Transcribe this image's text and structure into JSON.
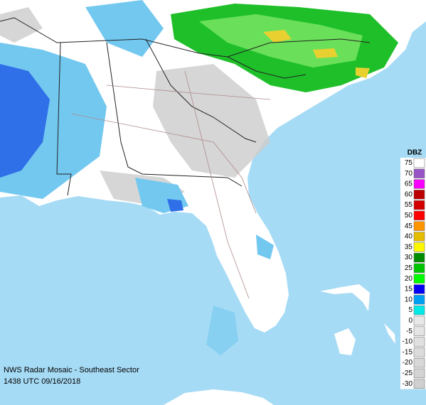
{
  "caption": {
    "title": "NWS Radar Mosaic - Southeast Sector",
    "timestamp": "1438 UTC 09/16/2018"
  },
  "legend": {
    "title": "DBZ",
    "entries": [
      {
        "label": 75,
        "color": "#ffffff"
      },
      {
        "label": 70,
        "color": "#9854c6"
      },
      {
        "label": 65,
        "color": "#f800fd"
      },
      {
        "label": 60,
        "color": "#bc0000"
      },
      {
        "label": 55,
        "color": "#d40000"
      },
      {
        "label": 50,
        "color": "#fd0000"
      },
      {
        "label": 45,
        "color": "#fd9500"
      },
      {
        "label": 40,
        "color": "#e5bc00"
      },
      {
        "label": 35,
        "color": "#fdf802"
      },
      {
        "label": 30,
        "color": "#008e00"
      },
      {
        "label": 25,
        "color": "#01c501"
      },
      {
        "label": 20,
        "color": "#02fd02"
      },
      {
        "label": 15,
        "color": "#0300f4"
      },
      {
        "label": 10,
        "color": "#019ff4"
      },
      {
        "label": 5,
        "color": "#04e9e7"
      },
      {
        "label": 0,
        "color": "#e8e8e8"
      },
      {
        "label": -5,
        "color": "#e4e4e4"
      },
      {
        "label": -10,
        "color": "#e0e0e0"
      },
      {
        "label": -15,
        "color": "#dcdcdc"
      },
      {
        "label": -20,
        "color": "#d8d8d8"
      },
      {
        "label": -25,
        "color": "#d4d4d4"
      },
      {
        "label": -30,
        "color": "#d0d0d0"
      }
    ]
  }
}
